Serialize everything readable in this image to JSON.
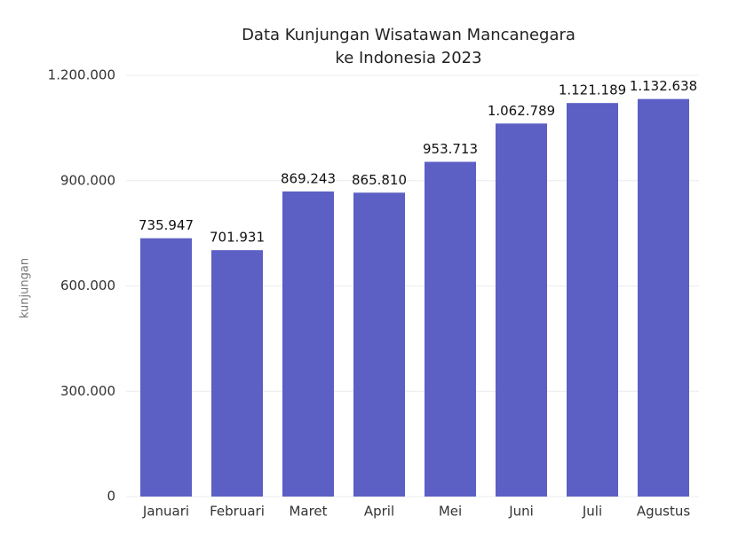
{
  "chart_data": {
    "type": "bar",
    "title": [
      "Data Kunjungan Wisatawan Mancanegara",
      "ke Indonesia 2023"
    ],
    "y_label": "kunjungan",
    "categories": [
      "Januari",
      "Februari",
      "Maret",
      "April",
      "Mei",
      "Juni",
      "Juli",
      "Agustus"
    ],
    "values": [
      735947,
      701931,
      869243,
      865810,
      953713,
      1062789,
      1121189,
      1132638
    ],
    "value_labels": [
      "735.947",
      "701.931",
      "869.243",
      "865.810",
      "953.713",
      "1.062.789",
      "1.121.189",
      "1.132.638"
    ],
    "color": "#5c5fc4",
    "ylim": [
      0,
      1200000
    ],
    "yticks": [
      0,
      {
        "value": 300000,
        "label": "300.000"
      },
      {
        "value": 600000,
        "label": "600.000"
      },
      {
        "value": 900000,
        "label": "900.000"
      },
      {
        "value": 1200000,
        "label": "1.200.000"
      }
    ],
    "grid": true
  }
}
